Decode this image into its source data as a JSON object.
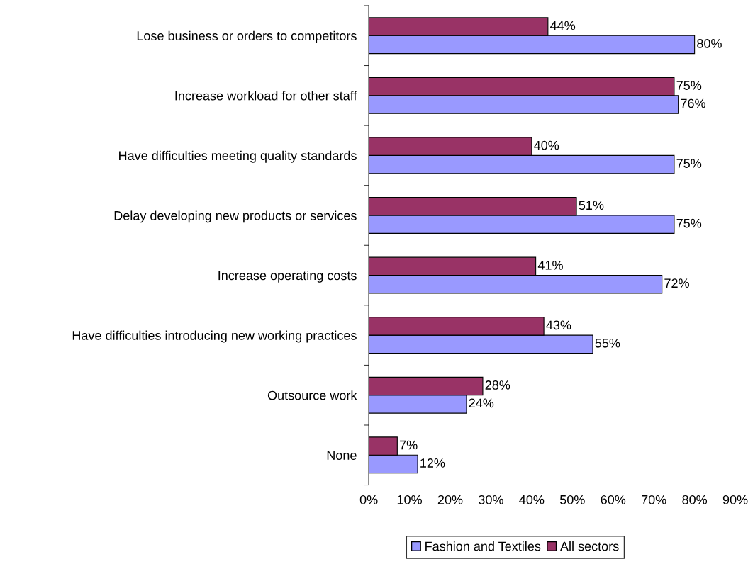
{
  "chart_data": {
    "type": "bar",
    "orientation": "horizontal",
    "categories": [
      "Lose business or orders to competitors",
      "Increase workload for other staff",
      "Have difficulties meeting quality standards",
      "Delay developing new products or services",
      "Increase operating costs",
      "Have difficulties introducing new working practices",
      "Outsource work",
      "None"
    ],
    "series": [
      {
        "name": "Fashion and Textiles",
        "color": "#9999ff",
        "values": [
          80,
          76,
          75,
          75,
          72,
          55,
          24,
          12
        ],
        "value_labels": [
          "80%",
          "76%",
          "75%",
          "75%",
          "72%",
          "55%",
          "24%",
          "12%"
        ]
      },
      {
        "name": "All sectors",
        "color": "#993366",
        "values": [
          44,
          75,
          40,
          51,
          41,
          43,
          28,
          7
        ],
        "value_labels": [
          "44%",
          "75%",
          "40%",
          "51%",
          "41%",
          "43%",
          "28%",
          "7%"
        ]
      }
    ],
    "xlim": [
      0,
      90
    ],
    "xticks": [
      {
        "value": 0,
        "label": "0%"
      },
      {
        "value": 10,
        "label": "10%"
      },
      {
        "value": 20,
        "label": "20%"
      },
      {
        "value": 30,
        "label": "30%"
      },
      {
        "value": 40,
        "label": "40%"
      },
      {
        "value": 50,
        "label": "50%"
      },
      {
        "value": 60,
        "label": "60%"
      },
      {
        "value": 70,
        "label": "70%"
      },
      {
        "value": 80,
        "label": "80%"
      },
      {
        "value": 90,
        "label": "90%"
      }
    ],
    "grid": false,
    "legend": "bottom"
  }
}
